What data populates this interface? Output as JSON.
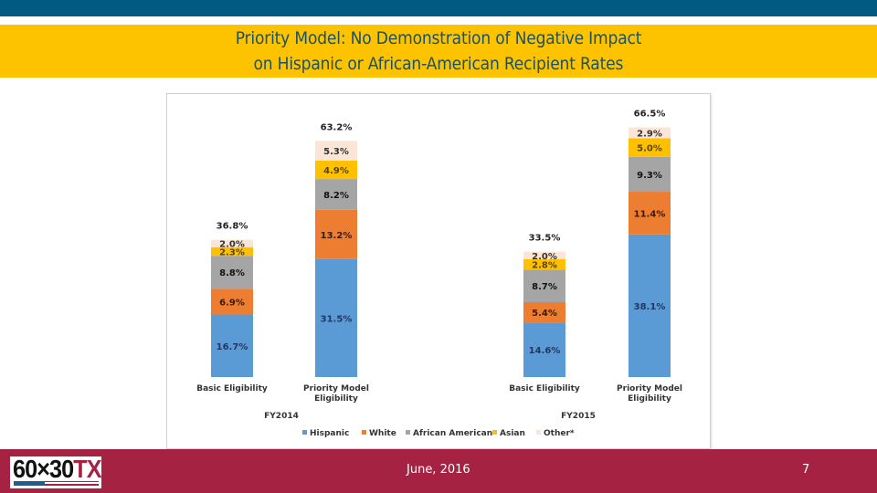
{
  "slide": {
    "title_line1": "Priority Model: No Demonstration of Negative Impact",
    "title_line2": "on Hispanic or African-American Recipient Rates",
    "footer_date": "June, 2016",
    "page_number": "7",
    "logo": {
      "dark": "60×30",
      "accent": "TX"
    }
  },
  "colors": {
    "top_bar": "#005a82",
    "title_band": "#fdc300",
    "title_text": "#1b5161",
    "footer": "#a52242"
  },
  "chart_data": {
    "type": "bar",
    "stacked": true,
    "title": "",
    "xlabel": "",
    "ylabel": "",
    "grid": false,
    "legend_position": "bottom",
    "groups": [
      {
        "label": "FY2014",
        "categories": [
          "Basic Eligibility",
          "Priority Model Eligibility"
        ]
      },
      {
        "label": "FY2015",
        "categories": [
          "Basic Eligibility",
          "Priority Model Eligibility"
        ]
      }
    ],
    "categories": [
      "Basic Eligibility",
      "Priority Model\nEligibility",
      "Basic Eligibility",
      "Priority Model\nEligibility"
    ],
    "series": [
      {
        "name": "Hispanic",
        "color": "#5b9bd5",
        "values": [
          16.7,
          31.5,
          14.6,
          38.1
        ],
        "labels": [
          "16.7%",
          "31.5%",
          "14.6%",
          "38.1%"
        ]
      },
      {
        "name": "White",
        "color": "#ed7d31",
        "values": [
          6.9,
          13.2,
          5.4,
          11.4
        ],
        "labels": [
          "6.9%",
          "13.2%",
          "5.4%",
          "11.4%"
        ]
      },
      {
        "name": "African American",
        "color": "#a5a5a5",
        "values": [
          8.8,
          8.2,
          8.7,
          9.3
        ],
        "labels": [
          "8.8%",
          "8.2%",
          "8.7%",
          "9.3%"
        ]
      },
      {
        "name": "Asian",
        "color": "#ffc000",
        "values": [
          2.3,
          4.9,
          2.8,
          5.0
        ],
        "labels": [
          "2.3%",
          "4.9%",
          "2.8%",
          "5.0%"
        ]
      },
      {
        "name": "Other*",
        "color": "#fbe5d6",
        "values": [
          2.0,
          5.3,
          2.0,
          2.9
        ],
        "labels": [
          "2.0%",
          "5.3%",
          "2.0%",
          "2.9%"
        ]
      }
    ],
    "totals": [
      "36.8%",
      "63.2%",
      "33.5%",
      "66.5%"
    ],
    "ylim": [
      0,
      70
    ]
  }
}
